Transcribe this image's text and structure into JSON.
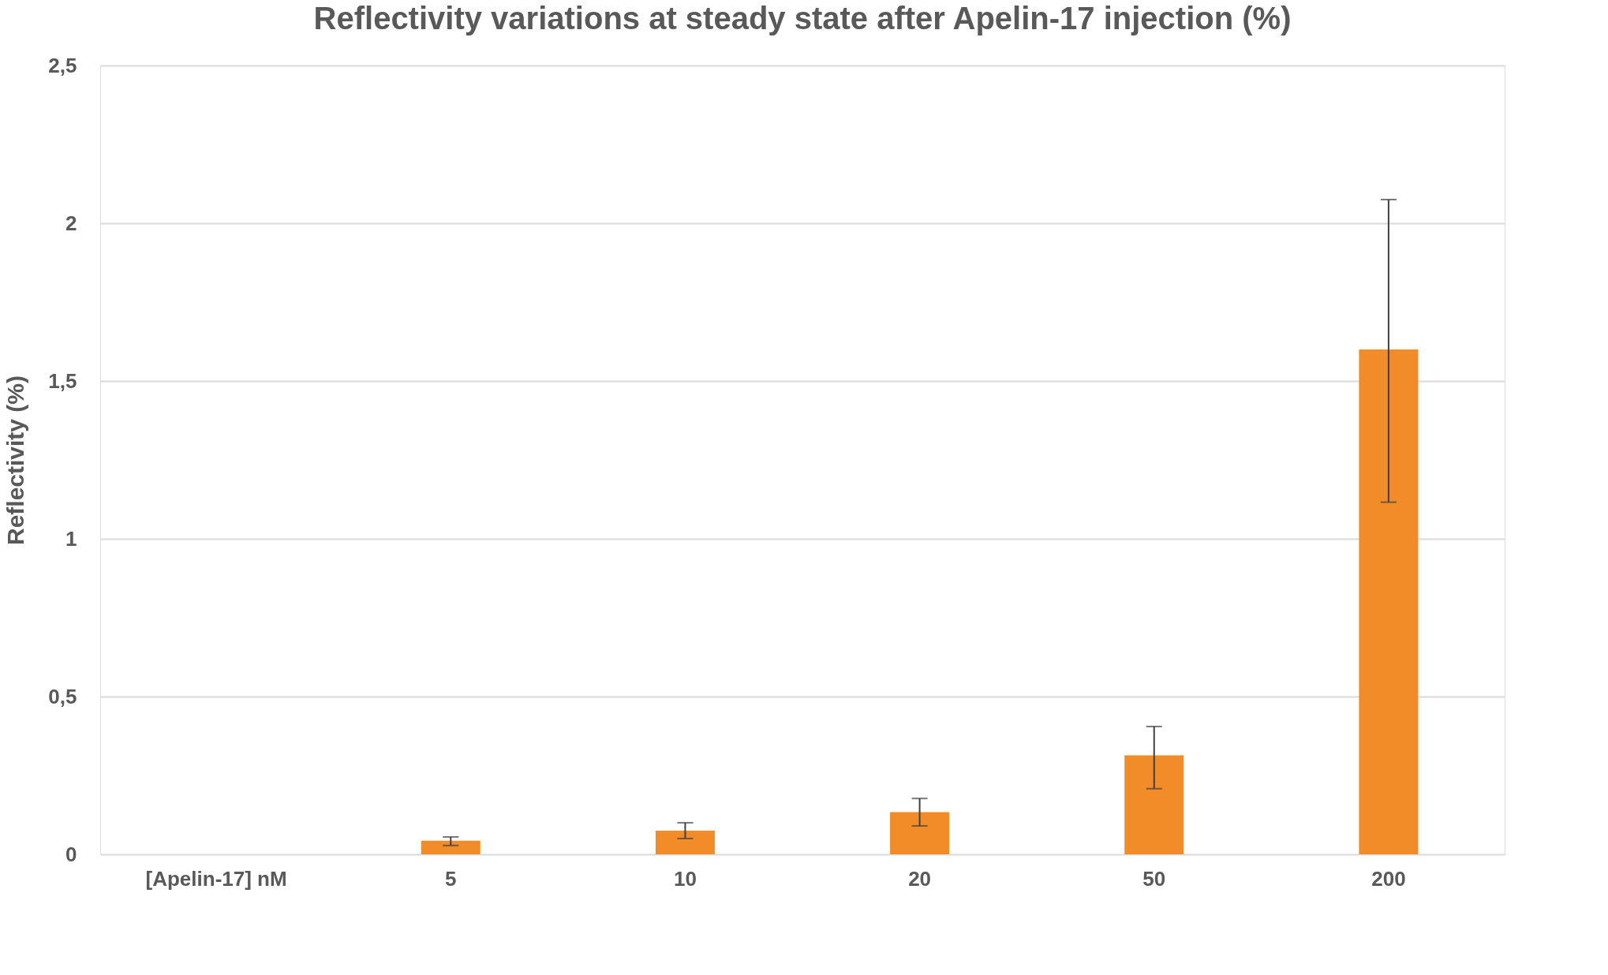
{
  "chart_data": {
    "type": "bar",
    "title": "Reflectivity variations at steady state after Apelin-17 injection (%)",
    "ylabel": "Reflectivity (%)",
    "categories": [
      "[Apelin-17] nM",
      "5",
      "10",
      "20",
      "50",
      "200"
    ],
    "values": [
      null,
      0.043,
      0.075,
      0.134,
      0.314,
      1.6
    ],
    "errors": [
      null,
      [
        0.028,
        0.055
      ],
      [
        0.05,
        0.1
      ],
      [
        0.09,
        0.177
      ],
      [
        0.208,
        0.405
      ],
      [
        1.116,
        2.075
      ]
    ],
    "color": "#f28c28",
    "ylim": [
      0,
      2.5
    ],
    "yticks": [
      0,
      {
        "value": 0.5,
        "label": "0,5"
      },
      1,
      {
        "value": 1.5,
        "label": "1,5"
      },
      2,
      {
        "value": 2.5,
        "label": "2,5"
      }
    ],
    "grid": "y"
  }
}
